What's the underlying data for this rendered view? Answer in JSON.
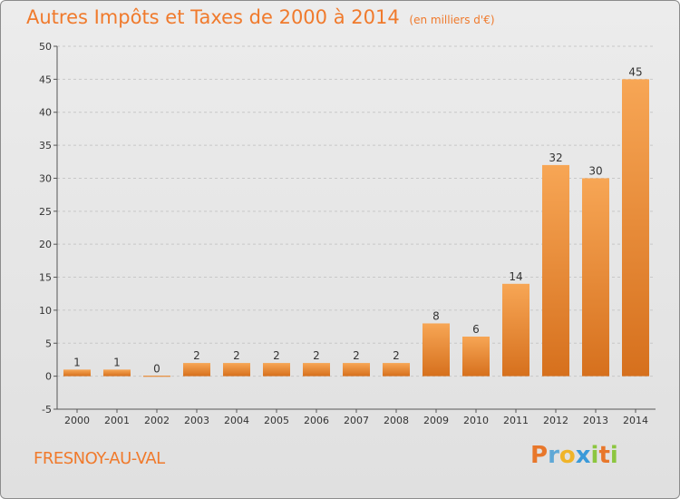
{
  "title": "Autres Impôts et Taxes de 2000 à 2014",
  "subtitle": "(en milliers d'€)",
  "commune": "FRESNOY-AU-VAL",
  "logo": {
    "letters": [
      "P",
      "r",
      "o",
      "x",
      "i",
      "t",
      "i"
    ],
    "colors": [
      "#e8772b",
      "#5fa8d6",
      "#f0b429",
      "#3a9ad9",
      "#8cc63f",
      "#e8772b",
      "#8cc63f"
    ]
  },
  "colors": {
    "accent": "#f07a2c",
    "bar_light": "#f5a555",
    "bar_dark": "#d8731f",
    "grid": "#c8c8c8"
  },
  "chart_data": {
    "type": "bar",
    "categories": [
      "2000",
      "2001",
      "2002",
      "2003",
      "2004",
      "2005",
      "2006",
      "2007",
      "2008",
      "2009",
      "2010",
      "2011",
      "2012",
      "2013",
      "2014"
    ],
    "values": [
      1,
      1,
      0,
      2,
      2,
      2,
      2,
      2,
      2,
      8,
      6,
      14,
      32,
      30,
      45
    ],
    "data_labels": [
      "1",
      "1",
      "0",
      "2",
      "2",
      "2",
      "2",
      "2",
      "2",
      "8",
      "6",
      "14",
      "32",
      "30",
      "45"
    ],
    "yticks": [
      -5,
      0,
      5,
      10,
      15,
      20,
      25,
      30,
      35,
      40,
      45,
      50
    ],
    "ylim": [
      -5,
      50
    ],
    "xlabel": "",
    "ylabel": "",
    "grid": "horizontal dashed"
  }
}
